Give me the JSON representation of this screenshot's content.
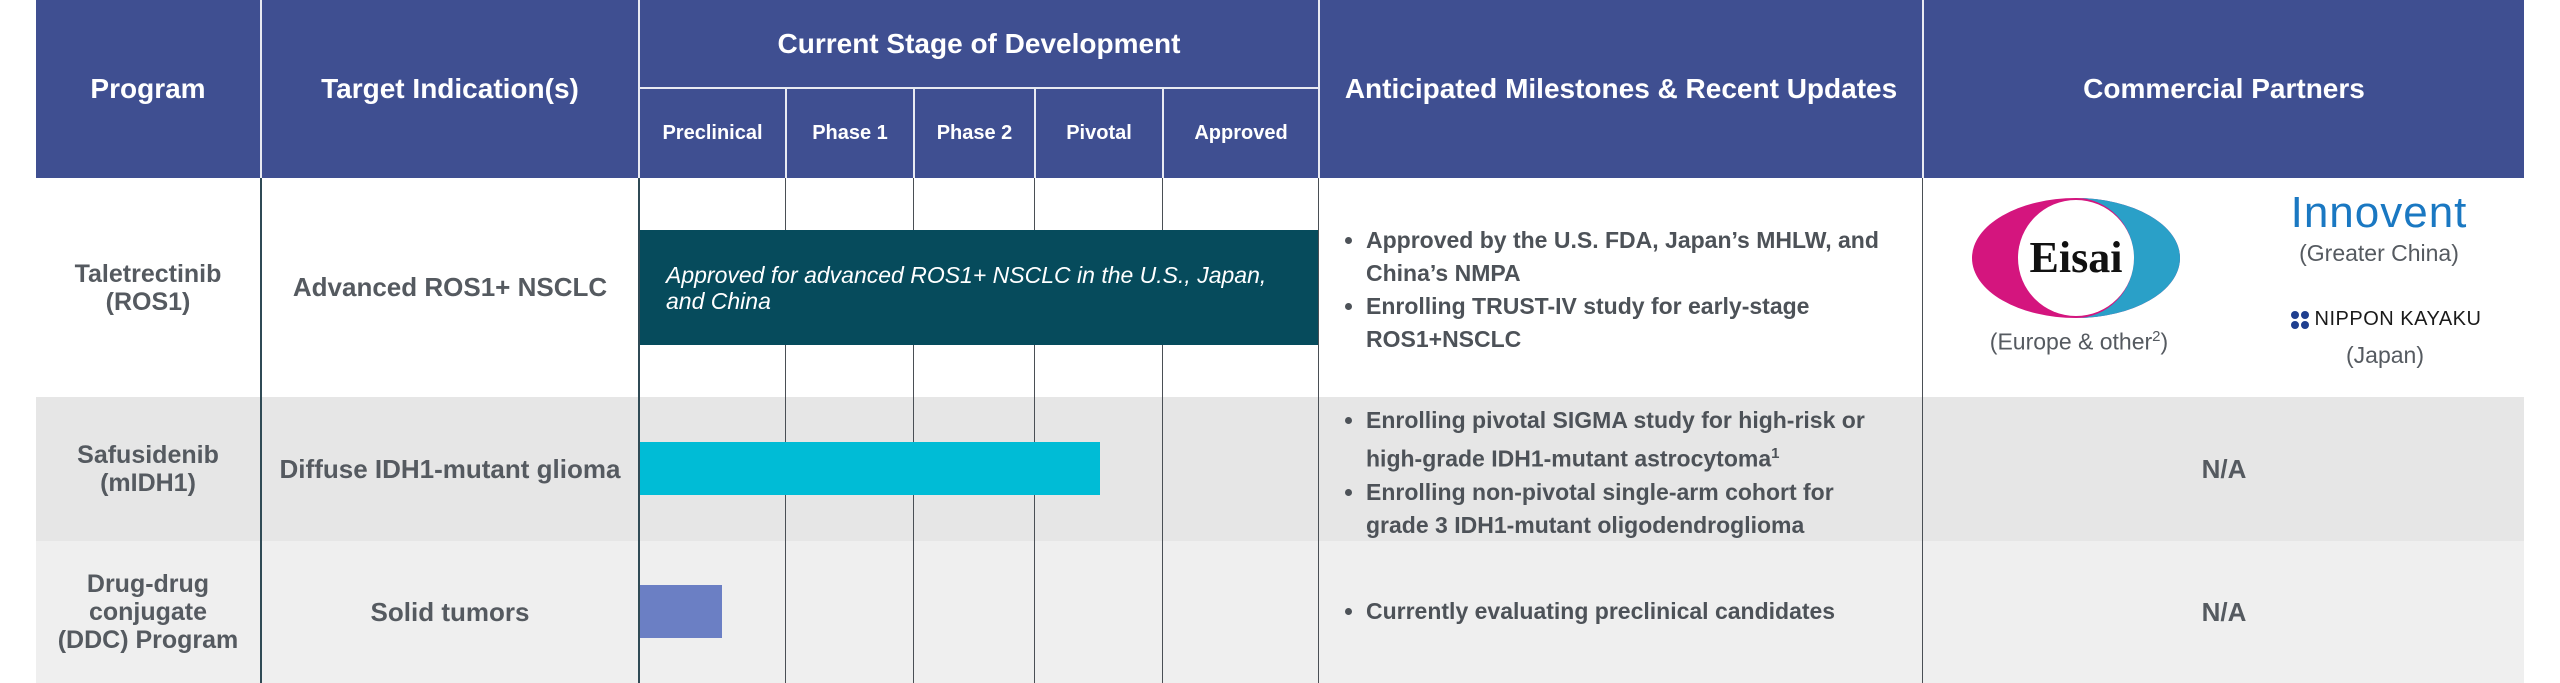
{
  "headers": {
    "program": "Program",
    "indication": "Target Indication(s)",
    "stage": "Current Stage of Development",
    "milestones": "Anticipated Milestones & Recent Updates",
    "partners": "Commercial Partners",
    "stages": [
      "Preclinical",
      "Phase 1",
      "Phase 2",
      "Pivotal",
      "Approved"
    ]
  },
  "rows": [
    {
      "program_lines": [
        "Taletrectinib",
        "(ROS1)"
      ],
      "indication": "Advanced ROS1+ NSCLC",
      "bar_label": "Approved for advanced ROS1+ NSCLC in the U.S., Japan, and China",
      "bar_color": "#064b5c",
      "bar_progress_stage": "Approved",
      "bar_fraction": 1.0,
      "milestones": [
        "Approved by the U.S. FDA, Japan’s MHLW, and China’s NMPA",
        "Enrolling TRUST-IV study for early-stage ROS1+NSCLC"
      ],
      "partners": {
        "eisai_logo": "Eisai",
        "eisai_caption": "(Europe & other",
        "eisai_sup": "2",
        "eisai_caption_end": ")",
        "innovent_logo": "Innovent",
        "innovent_caption": "(Greater China)",
        "nippon_logo": "NIPPON KAYAKU",
        "nippon_caption": "(Japan)"
      }
    },
    {
      "program_lines": [
        "Safusidenib",
        "(mIDH1)"
      ],
      "indication": "Diffuse IDH1-mutant glioma",
      "bar_color": "#00bcd6",
      "bar_progress_stage": "Pivotal",
      "milestones_html": true,
      "milestone_1a": "Enrolling pivotal SIGMA study for high-risk or high-grade IDH1-mutant astrocytoma",
      "milestone_1_sup": "1",
      "milestone_2": "Enrolling non-pivotal single-arm cohort for grade 3 IDH1-mutant oligodendroglioma",
      "partners_text": "N/A"
    },
    {
      "program_lines": [
        "Drug-drug",
        "conjugate",
        "(DDC) Program"
      ],
      "indication": "Solid tumors",
      "bar_color": "#6b7fc4",
      "bar_progress_stage": "Preclinical",
      "milestones": [
        "Currently evaluating preclinical candidates"
      ],
      "partners_text": "N/A"
    }
  ],
  "colors": {
    "header_bg": "#3f4f91",
    "row_alt_bg": "#e6e6e6",
    "row_last_bg": "#efefef",
    "eisai_magenta": "#d4157e",
    "eisai_blue": "#2aa0c8",
    "innovent_blue": "#1a78c2"
  },
  "icons": {
    "nippon_mark": "nippon-kayaku-mark-icon",
    "bullet": "bullet-icon"
  }
}
